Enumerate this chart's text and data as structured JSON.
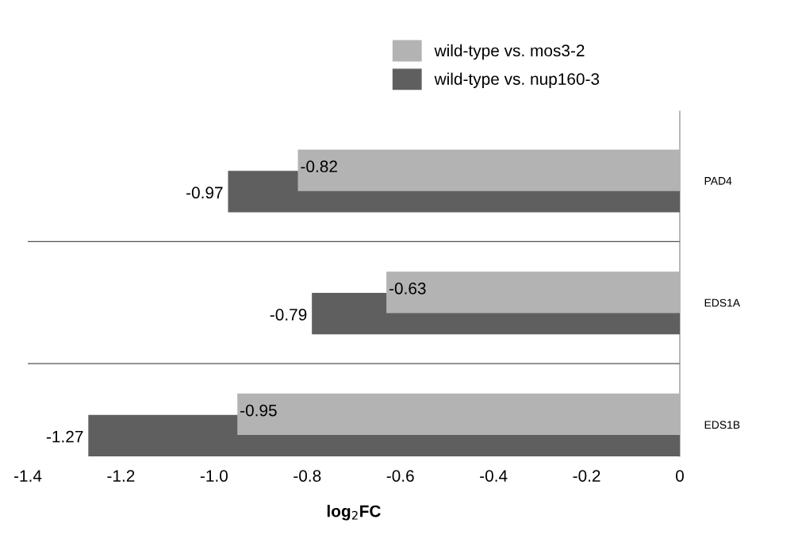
{
  "chart_data": {
    "type": "bar",
    "orientation": "horizontal",
    "xlabel": "log$_{2}$FC",
    "categories": [
      "PAD4",
      "EDS1A",
      "EDS1B"
    ],
    "series": [
      {
        "name": "wild-type vs. mos3-2",
        "color": "#b3b3b3",
        "values": [
          -0.82,
          -0.63,
          -0.95
        ]
      },
      {
        "name": "wild-type vs. nup160-3",
        "color": "#5f5f5f",
        "values": [
          -0.97,
          -0.79,
          -1.27
        ]
      }
    ],
    "xlim": [
      -1.4,
      0
    ],
    "xticks": [
      {
        "value": -1.4,
        "label": "-1.4"
      },
      {
        "value": -1.2,
        "label": "-1.2"
      },
      {
        "value": -1.0,
        "label": "-1.0"
      },
      {
        "value": -0.8,
        "label": "-0.8"
      },
      {
        "value": -0.6,
        "label": "-0.6"
      },
      {
        "value": -0.4,
        "label": "-0.4"
      },
      {
        "value": -0.2,
        "label": "-0.2"
      },
      {
        "value": 0,
        "label": "0"
      }
    ],
    "grid": "y",
    "legend": "top right",
    "data_labels": true
  }
}
